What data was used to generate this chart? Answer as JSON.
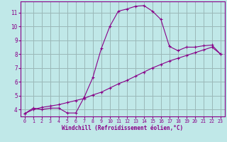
{
  "xlabel": "Windchill (Refroidissement éolien,°C)",
  "background_color": "#c0e8e8",
  "grid_color": "#9ab8b8",
  "line_color": "#880088",
  "xlim": [
    -0.5,
    23.5
  ],
  "ylim": [
    3.5,
    11.8
  ],
  "xticks": [
    0,
    1,
    2,
    3,
    4,
    5,
    6,
    7,
    8,
    9,
    10,
    11,
    12,
    13,
    14,
    15,
    16,
    17,
    18,
    19,
    20,
    21,
    22,
    23
  ],
  "yticks": [
    4,
    5,
    6,
    7,
    8,
    9,
    10,
    11
  ],
  "curve1_x": [
    0,
    1,
    2,
    3,
    4,
    5,
    6,
    7,
    8,
    9,
    10,
    11,
    12,
    13,
    14,
    15,
    16,
    17,
    18,
    19,
    20,
    21,
    22,
    23
  ],
  "curve1_y": [
    3.7,
    4.1,
    4.0,
    4.1,
    4.1,
    3.75,
    3.75,
    4.9,
    6.3,
    8.4,
    10.0,
    11.1,
    11.25,
    11.45,
    11.5,
    11.1,
    10.5,
    8.55,
    8.25,
    8.5,
    8.5,
    8.6,
    8.65,
    8.0
  ],
  "curve2_x": [
    0,
    1,
    2,
    3,
    4,
    5,
    6,
    7,
    8,
    9,
    10,
    11,
    12,
    13,
    14,
    15,
    16,
    17,
    18,
    19,
    20,
    21,
    22,
    23
  ],
  "curve2_y": [
    3.7,
    4.0,
    4.15,
    4.25,
    4.35,
    4.5,
    4.65,
    4.8,
    5.05,
    5.25,
    5.55,
    5.85,
    6.1,
    6.4,
    6.7,
    7.0,
    7.25,
    7.5,
    7.7,
    7.9,
    8.1,
    8.3,
    8.5,
    8.0
  ],
  "curve3_x": [
    0,
    23
  ],
  "curve3_y": [
    3.7,
    8.0
  ]
}
